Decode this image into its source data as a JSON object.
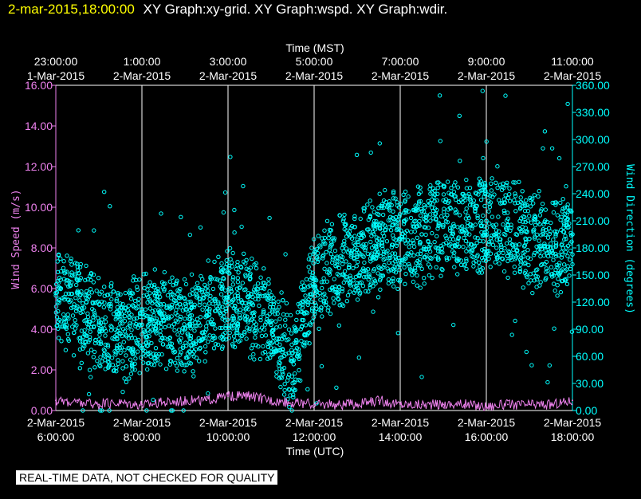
{
  "header": {
    "timestamp": "2-mar-2015,18:00:00",
    "graph_titles": "XY Graph:xy-grid.  XY Graph:wspd.  XY Graph:wdir."
  },
  "footer": {
    "qc_notice": "REAL-TIME DATA, NOT CHECKED FOR QUALITY"
  },
  "colors": {
    "wind_speed": "#ee82ee",
    "wind_direction": "#00ffff",
    "grid": "#ffffff",
    "background": "#000000"
  },
  "chart_data": {
    "type": "scatter",
    "top_axis_title": "Time (MST)",
    "bottom_axis_title": "Time (UTC)",
    "y_left_label": "Wind Speed (m/s)",
    "y_right_label": "Wind Direction (degrees)",
    "y_left_ylim": [
      0,
      16
    ],
    "y_right_ylim": [
      0,
      360
    ],
    "x_range_utc_hours": [
      6,
      18
    ],
    "grid": true,
    "bottom_ticks": [
      {
        "hour": 6,
        "date": "2-Mar-2015",
        "time": "6:00:00"
      },
      {
        "hour": 8,
        "date": "2-Mar-2015",
        "time": "8:00:00"
      },
      {
        "hour": 10,
        "date": "2-Mar-2015",
        "time": "10:00:00"
      },
      {
        "hour": 12,
        "date": "2-Mar-2015",
        "time": "12:00:00"
      },
      {
        "hour": 14,
        "date": "2-Mar-2015",
        "time": "14:00:00"
      },
      {
        "hour": 16,
        "date": "2-Mar-2015",
        "time": "16:00:00"
      },
      {
        "hour": 18,
        "date": "2-Mar-2015",
        "time": "18:00:00"
      }
    ],
    "top_ticks": [
      {
        "hour": 6,
        "time": "23:00:00",
        "date": "1-Mar-2015"
      },
      {
        "hour": 8,
        "time": "1:00:00",
        "date": "2-Mar-2015"
      },
      {
        "hour": 10,
        "time": "3:00:00",
        "date": "2-Mar-2015"
      },
      {
        "hour": 12,
        "time": "5:00:00",
        "date": "2-Mar-2015"
      },
      {
        "hour": 14,
        "time": "7:00:00",
        "date": "2-Mar-2015"
      },
      {
        "hour": 16,
        "time": "9:00:00",
        "date": "2-Mar-2015"
      },
      {
        "hour": 18,
        "time": "11:00:00",
        "date": "2-Mar-2015"
      }
    ],
    "left_ticks": [
      {
        "value": 0,
        "label": "0.00"
      },
      {
        "value": 2,
        "label": "2.00"
      },
      {
        "value": 4,
        "label": "4.00"
      },
      {
        "value": 6,
        "label": "6.00"
      },
      {
        "value": 8,
        "label": "8.00"
      },
      {
        "value": 10,
        "label": "10.00"
      },
      {
        "value": 12,
        "label": "12.00"
      },
      {
        "value": 14,
        "label": "14.00"
      },
      {
        "value": 16,
        "label": "16.00"
      }
    ],
    "right_ticks": [
      {
        "value": 0,
        "label": "0.00"
      },
      {
        "value": 30,
        "label": "30.00"
      },
      {
        "value": 60,
        "label": "60.00"
      },
      {
        "value": 90,
        "label": "90.00"
      },
      {
        "value": 120,
        "label": "120.00"
      },
      {
        "value": 150,
        "label": "150.00"
      },
      {
        "value": 180,
        "label": "180.00"
      },
      {
        "value": 210,
        "label": "210.00"
      },
      {
        "value": 240,
        "label": "240.00"
      },
      {
        "value": 270,
        "label": "270.00"
      },
      {
        "value": 300,
        "label": "300.00"
      },
      {
        "value": 330,
        "label": "330.00"
      },
      {
        "value": 360,
        "label": "360.00"
      }
    ],
    "series": [
      {
        "axis": "left",
        "style": "line",
        "x_hours_utc": [
          6.0,
          6.5,
          7.0,
          7.5,
          8.0,
          8.5,
          9.0,
          9.5,
          10.0,
          10.5,
          11.0,
          11.5,
          12.0,
          12.5,
          13.0,
          13.5,
          14.0,
          14.5,
          15.0,
          15.5,
          16.0,
          16.5,
          17.0,
          17.5,
          18.0
        ],
        "wind_speed_ms": [
          0.5,
          0.4,
          0.3,
          0.4,
          0.3,
          0.4,
          0.5,
          0.5,
          0.7,
          0.7,
          0.5,
          0.4,
          0.3,
          0.3,
          0.3,
          0.5,
          0.3,
          0.3,
          0.3,
          0.3,
          0.2,
          0.3,
          0.3,
          0.3,
          0.5
        ]
      },
      {
        "axis": "right",
        "style": "circles",
        "x_hours_utc": [
          6.0,
          6.5,
          7.0,
          7.5,
          8.0,
          8.5,
          9.0,
          9.5,
          10.0,
          10.5,
          11.0,
          11.5,
          11.75,
          12.0,
          12.5,
          13.0,
          13.5,
          14.0,
          14.5,
          15.0,
          15.5,
          16.0,
          16.5,
          17.0,
          17.5,
          18.0
        ],
        "wind_direction_deg": [
          130,
          115,
          95,
          85,
          95,
          100,
          90,
          105,
          125,
          120,
          95,
          55,
          100,
          145,
          160,
          170,
          185,
          190,
          195,
          205,
          200,
          210,
          205,
          190,
          180,
          195
        ]
      }
    ]
  }
}
